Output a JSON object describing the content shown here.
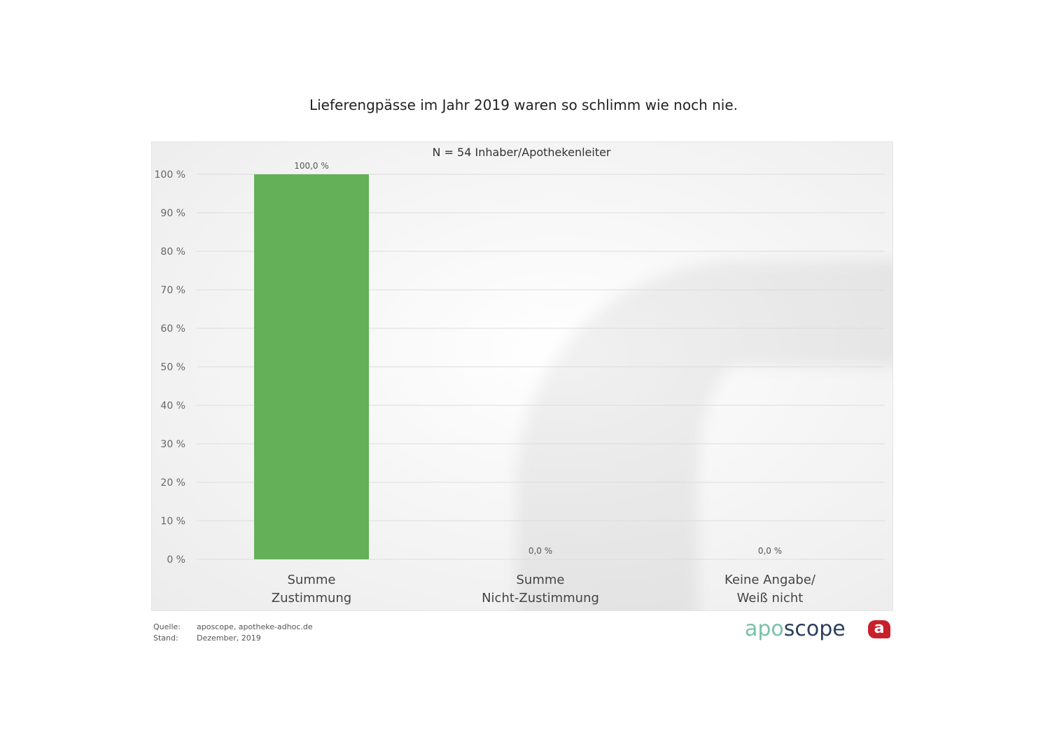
{
  "title": "Lieferengpässe im Jahr 2019 waren so schlimm wie noch nie.",
  "chart_data": {
    "type": "bar",
    "title": "Lieferengpässe im Jahr 2019 waren so schlimm wie noch nie.",
    "subtitle": "N = 54 Inhaber/Apothekenleiter",
    "categories": [
      "Summe\nZustimmung",
      "Summe\nNicht-Zustimmung",
      "Keine Angabe/\nWeiß nicht"
    ],
    "values": [
      100.0,
      0.0,
      0.0
    ],
    "data_labels": [
      "100,0 %",
      "0,0 %",
      "0,0 %"
    ],
    "ylim": [
      0,
      100
    ],
    "yticks": [
      "0 %",
      "10 %",
      "20 %",
      "30 %",
      "40 %",
      "50 %",
      "60 %",
      "70 %",
      "80 %",
      "90 %",
      "100 %"
    ],
    "grid": true,
    "bar_color": "#63b058",
    "xlabel": "",
    "ylabel": ""
  },
  "footer": {
    "source_label": "Quelle:",
    "source_value": "aposcope, apotheke-adhoc.de",
    "date_label": "Stand:",
    "date_value": "Dezember,  2019"
  },
  "logo": {
    "text": "aposcope",
    "part1": "apo",
    "part2": "scope",
    "badge": "a",
    "colors": {
      "apo": "#7cc0a8",
      "scope": "#2b3e5c",
      "badge": "#c8202a"
    }
  }
}
